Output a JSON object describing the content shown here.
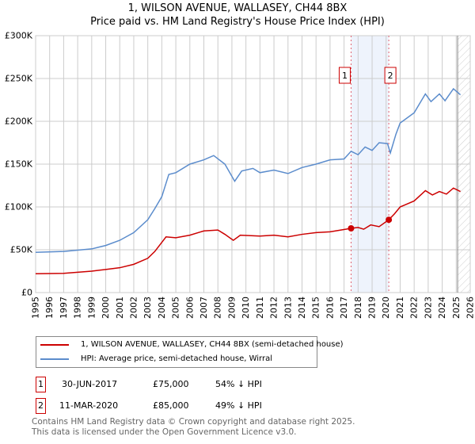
{
  "chart_data": {
    "type": "line",
    "title": "1, WILSON AVENUE, WALLASEY, CH44 8BX",
    "subtitle": "Price paid vs. HM Land Registry's House Price Index (HPI)",
    "xlim": [
      1995,
      2026
    ],
    "ylim": [
      0,
      300000
    ],
    "yticks": [
      {
        "v": 0,
        "label": "£0"
      },
      {
        "v": 50000,
        "label": "£50K"
      },
      {
        "v": 100000,
        "label": "£100K"
      },
      {
        "v": 150000,
        "label": "£150K"
      },
      {
        "v": 200000,
        "label": "£200K"
      },
      {
        "v": 250000,
        "label": "£250K"
      },
      {
        "v": 300000,
        "label": "£300K"
      }
    ],
    "xticks": [
      "1995",
      "1996",
      "1997",
      "1998",
      "1999",
      "2000",
      "2001",
      "2002",
      "2003",
      "2004",
      "2005",
      "2006",
      "2007",
      "2008",
      "2009",
      "2010",
      "2011",
      "2012",
      "2013",
      "2014",
      "2015",
      "2016",
      "2017",
      "2018",
      "2019",
      "2020",
      "2021",
      "2022",
      "2023",
      "2024",
      "2025",
      "2026"
    ],
    "grid": true,
    "shaded_range": [
      2017.5,
      2020.19
    ],
    "hatched_from": 2025.1,
    "series": [
      {
        "name": "1, WILSON AVENUE, WALLASEY, CH44 8BX (semi-detached house)",
        "color": "#cc0000",
        "points": [
          [
            1995,
            22000
          ],
          [
            1997,
            22500
          ],
          [
            1999,
            25000
          ],
          [
            2000,
            27000
          ],
          [
            2001,
            29000
          ],
          [
            2002,
            33000
          ],
          [
            2003,
            40000
          ],
          [
            2003.5,
            48000
          ],
          [
            2004.3,
            65000
          ],
          [
            2005,
            64000
          ],
          [
            2006,
            67000
          ],
          [
            2007,
            72000
          ],
          [
            2008,
            73000
          ],
          [
            2008.5,
            68000
          ],
          [
            2009.1,
            61000
          ],
          [
            2009.6,
            67000
          ],
          [
            2011,
            66000
          ],
          [
            2012,
            67000
          ],
          [
            2013,
            65000
          ],
          [
            2014,
            68000
          ],
          [
            2015,
            70000
          ],
          [
            2016,
            71000
          ],
          [
            2017.5,
            75000
          ],
          [
            2018,
            76000
          ],
          [
            2018.4,
            74000
          ],
          [
            2018.9,
            79000
          ],
          [
            2019.5,
            77000
          ],
          [
            2020.19,
            85000
          ],
          [
            2020.6,
            92000
          ],
          [
            2021,
            100000
          ],
          [
            2022,
            107000
          ],
          [
            2022.8,
            119000
          ],
          [
            2023.3,
            114000
          ],
          [
            2023.8,
            118000
          ],
          [
            2024.3,
            115000
          ],
          [
            2024.8,
            122000
          ],
          [
            2025.3,
            118000
          ]
        ]
      },
      {
        "name": "HPI: Average price, semi-detached house, Wirral",
        "color": "#5b8ccc",
        "points": [
          [
            1995,
            47000
          ],
          [
            1997,
            48000
          ],
          [
            1999,
            51000
          ],
          [
            2000,
            55000
          ],
          [
            2001,
            61000
          ],
          [
            2002,
            70000
          ],
          [
            2003,
            85000
          ],
          [
            2003.5,
            98000
          ],
          [
            2004,
            112000
          ],
          [
            2004.5,
            138000
          ],
          [
            2005,
            140000
          ],
          [
            2006,
            150000
          ],
          [
            2007,
            155000
          ],
          [
            2007.7,
            160000
          ],
          [
            2008.5,
            150000
          ],
          [
            2009.2,
            130000
          ],
          [
            2009.7,
            142000
          ],
          [
            2010.5,
            145000
          ],
          [
            2011,
            140000
          ],
          [
            2012,
            143000
          ],
          [
            2013,
            139000
          ],
          [
            2014,
            146000
          ],
          [
            2015,
            150000
          ],
          [
            2016,
            155000
          ],
          [
            2017,
            156000
          ],
          [
            2017.5,
            165000
          ],
          [
            2018,
            161000
          ],
          [
            2018.5,
            170000
          ],
          [
            2019,
            166000
          ],
          [
            2019.5,
            175000
          ],
          [
            2020.1,
            174000
          ],
          [
            2020.3,
            163000
          ],
          [
            2020.7,
            185000
          ],
          [
            2021,
            198000
          ],
          [
            2022,
            210000
          ],
          [
            2022.8,
            232000
          ],
          [
            2023.2,
            223000
          ],
          [
            2023.8,
            232000
          ],
          [
            2024.2,
            224000
          ],
          [
            2024.8,
            238000
          ],
          [
            2025.3,
            231000
          ]
        ]
      }
    ],
    "sales": [
      {
        "label": "1",
        "x": 2017.5,
        "y": 75000
      },
      {
        "label": "2",
        "x": 2020.19,
        "y": 85000
      }
    ]
  },
  "legend": [
    "1, WILSON AVENUE, WALLASEY, CH44 8BX (semi-detached house)",
    "HPI: Average price, semi-detached house, Wirral"
  ],
  "transactions": [
    {
      "num": "1",
      "date": "30-JUN-2017",
      "price": "£75,000",
      "hpi": "54% ↓ HPI"
    },
    {
      "num": "2",
      "date": "11-MAR-2020",
      "price": "£85,000",
      "hpi": "49% ↓ HPI"
    }
  ],
  "footer": [
    "Contains HM Land Registry data © Crown copyright and database right 2025.",
    "This data is licensed under the Open Government Licence v3.0."
  ]
}
